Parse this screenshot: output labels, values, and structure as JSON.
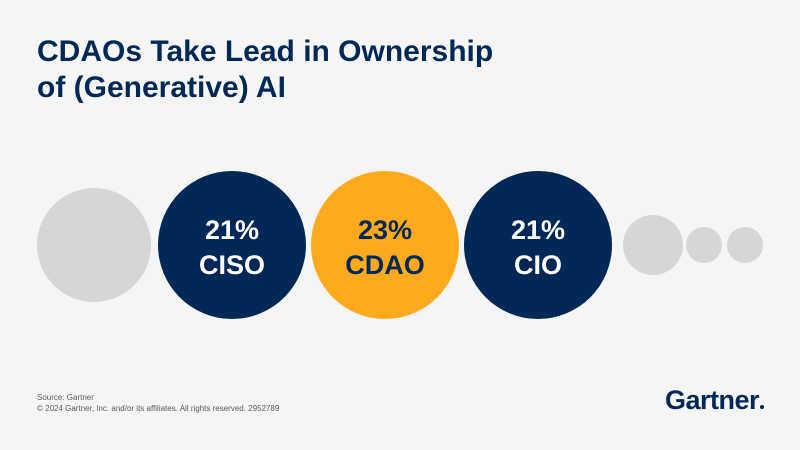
{
  "title": {
    "line1": "CDAOs Take Lead in Ownership",
    "line2": "of (Generative) AI"
  },
  "chart_data": {
    "type": "bubble",
    "categories": [
      "",
      "CISO",
      "CDAO",
      "CIO",
      "",
      "",
      ""
    ],
    "values": [
      null,
      21,
      23,
      21,
      null,
      null,
      null
    ],
    "value_labels": [
      "",
      "21%",
      "23%",
      "21%",
      "",
      "",
      ""
    ],
    "highlight": "CDAO",
    "colors": [
      "#d6d6d6",
      "#002856",
      "#ffaa1e",
      "#002856",
      "#d6d6d6",
      "#d6d6d6",
      "#d6d6d6"
    ]
  },
  "footer": {
    "source": "Source: Gartner",
    "copyright": "© 2024 Gartner, Inc. and/or its affiliates. All rights reserved. 2952789"
  },
  "logo": {
    "text": "Gartner"
  }
}
